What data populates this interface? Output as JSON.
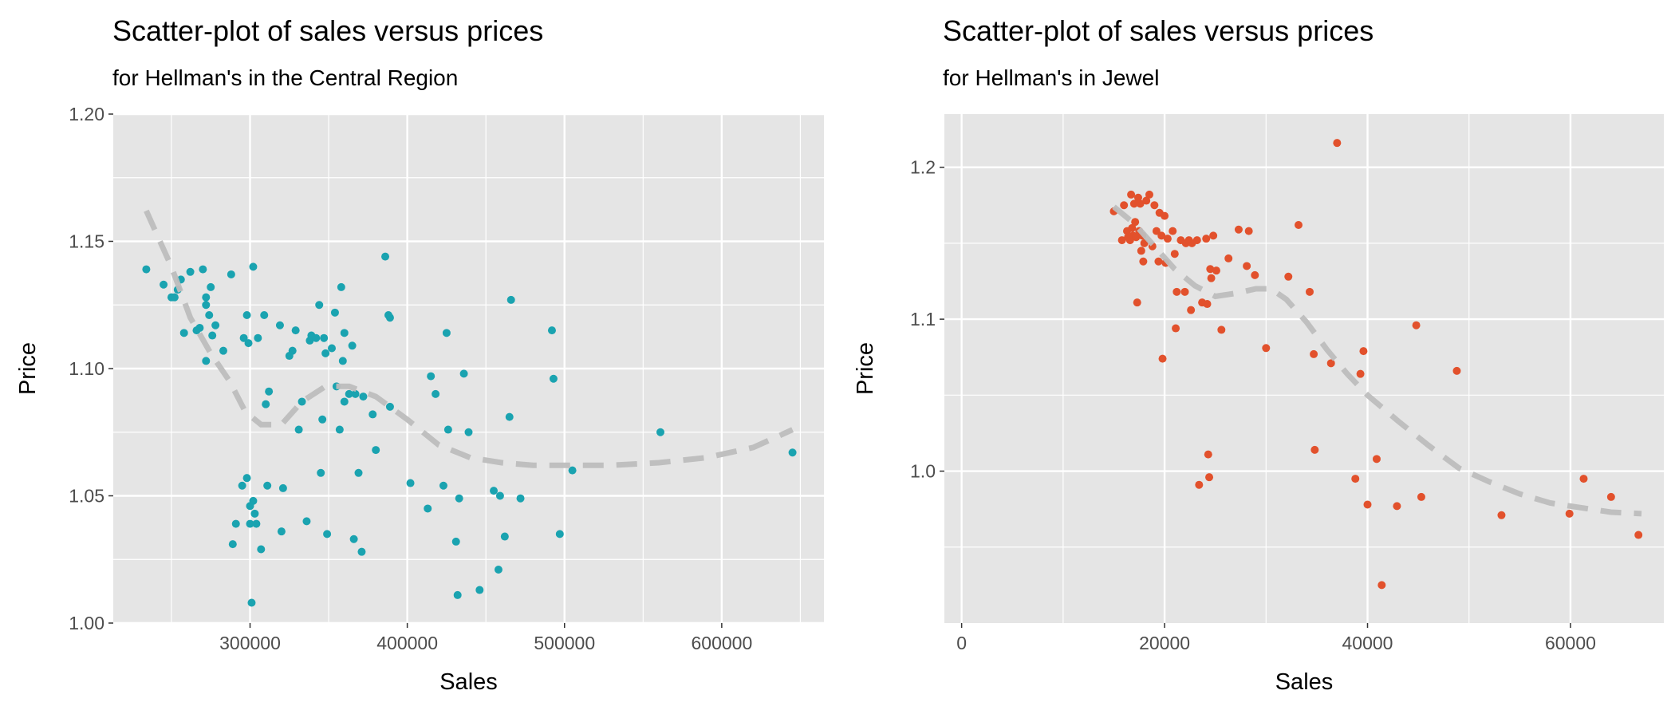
{
  "colors": {
    "panel_background": "#e5e5e5",
    "grid_line": "#ffffff",
    "left_points": "#1aa3b0",
    "right_points": "#e2512c",
    "smooth_line": "#bdbdbd"
  },
  "chart_data": [
    {
      "type": "scatter",
      "title": "Scatter-plot of sales versus prices",
      "subtitle": "for Hellman's in the Central Region",
      "xlabel": "Sales",
      "ylabel": "Price",
      "xlim": [
        213000,
        665000
      ],
      "ylim": [
        1.0,
        1.2
      ],
      "xticks": [
        300000,
        400000,
        500000,
        600000
      ],
      "xtick_labels": [
        "300000",
        "400000",
        "500000",
        "600000"
      ],
      "yticks": [
        1.0,
        1.05,
        1.1,
        1.15,
        1.2
      ],
      "ytick_labels": [
        "1.00",
        "1.05",
        "1.10",
        "1.15",
        "1.20"
      ],
      "grid": true,
      "point_color": "#1aa3b0",
      "points": [
        [
          234000,
          1.139
        ],
        [
          245000,
          1.133
        ],
        [
          250000,
          1.128
        ],
        [
          252000,
          1.128
        ],
        [
          254000,
          1.131
        ],
        [
          256000,
          1.135
        ],
        [
          258000,
          1.114
        ],
        [
          262000,
          1.138
        ],
        [
          266000,
          1.115
        ],
        [
          268000,
          1.116
        ],
        [
          270000,
          1.139
        ],
        [
          272000,
          1.128
        ],
        [
          272000,
          1.125
        ],
        [
          272000,
          1.103
        ],
        [
          274000,
          1.121
        ],
        [
          275000,
          1.132
        ],
        [
          276000,
          1.113
        ],
        [
          278000,
          1.117
        ],
        [
          283000,
          1.107
        ],
        [
          288000,
          1.137
        ],
        [
          289000,
          1.031
        ],
        [
          291000,
          1.039
        ],
        [
          295000,
          1.054
        ],
        [
          296000,
          1.112
        ],
        [
          298000,
          1.121
        ],
        [
          298000,
          1.057
        ],
        [
          299000,
          1.11
        ],
        [
          300000,
          1.046
        ],
        [
          300000,
          1.039
        ],
        [
          301000,
          1.008
        ],
        [
          302000,
          1.048
        ],
        [
          302000,
          1.14
        ],
        [
          303000,
          1.043
        ],
        [
          304000,
          1.039
        ],
        [
          305000,
          1.112
        ],
        [
          307000,
          1.029
        ],
        [
          309000,
          1.121
        ],
        [
          310000,
          1.086
        ],
        [
          311000,
          1.054
        ],
        [
          312000,
          1.091
        ],
        [
          319000,
          1.117
        ],
        [
          320000,
          1.036
        ],
        [
          321000,
          1.053
        ],
        [
          325000,
          1.105
        ],
        [
          327000,
          1.107
        ],
        [
          329000,
          1.115
        ],
        [
          331000,
          1.076
        ],
        [
          333000,
          1.087
        ],
        [
          336000,
          1.04
        ],
        [
          338000,
          1.111
        ],
        [
          339000,
          1.113
        ],
        [
          342000,
          1.112
        ],
        [
          344000,
          1.125
        ],
        [
          345000,
          1.059
        ],
        [
          346000,
          1.08
        ],
        [
          347000,
          1.112
        ],
        [
          348000,
          1.106
        ],
        [
          349000,
          1.035
        ],
        [
          352000,
          1.108
        ],
        [
          354000,
          1.122
        ],
        [
          355000,
          1.093
        ],
        [
          357000,
          1.076
        ],
        [
          358000,
          1.132
        ],
        [
          359000,
          1.103
        ],
        [
          360000,
          1.114
        ],
        [
          360000,
          1.087
        ],
        [
          363000,
          1.09
        ],
        [
          365000,
          1.109
        ],
        [
          366000,
          1.033
        ],
        [
          367000,
          1.09
        ],
        [
          369000,
          1.059
        ],
        [
          371000,
          1.028
        ],
        [
          372000,
          1.089
        ],
        [
          378000,
          1.082
        ],
        [
          380000,
          1.068
        ],
        [
          386000,
          1.144
        ],
        [
          388000,
          1.121
        ],
        [
          389000,
          1.12
        ],
        [
          389000,
          1.085
        ],
        [
          402000,
          1.055
        ],
        [
          413000,
          1.045
        ],
        [
          415000,
          1.097
        ],
        [
          418000,
          1.09
        ],
        [
          423000,
          1.054
        ],
        [
          425000,
          1.114
        ],
        [
          426000,
          1.076
        ],
        [
          431000,
          1.032
        ],
        [
          432000,
          1.011
        ],
        [
          433000,
          1.049
        ],
        [
          436000,
          1.098
        ],
        [
          439000,
          1.075
        ],
        [
          446000,
          1.013
        ],
        [
          455000,
          1.052
        ],
        [
          458000,
          1.021
        ],
        [
          459000,
          1.05
        ],
        [
          462000,
          1.034
        ],
        [
          465000,
          1.081
        ],
        [
          466000,
          1.127
        ],
        [
          472000,
          1.049
        ],
        [
          492000,
          1.115
        ],
        [
          493000,
          1.096
        ],
        [
          497000,
          1.035
        ],
        [
          505000,
          1.06
        ],
        [
          561000,
          1.075
        ],
        [
          645000,
          1.067
        ]
      ],
      "smooth_line": [
        [
          234000,
          1.162
        ],
        [
          250000,
          1.14
        ],
        [
          262000,
          1.12
        ],
        [
          275000,
          1.106
        ],
        [
          287000,
          1.095
        ],
        [
          297000,
          1.083
        ],
        [
          307000,
          1.078
        ],
        [
          320000,
          1.078
        ],
        [
          333000,
          1.087
        ],
        [
          348000,
          1.093
        ],
        [
          363000,
          1.093
        ],
        [
          380000,
          1.089
        ],
        [
          400000,
          1.08
        ],
        [
          420000,
          1.07
        ],
        [
          440000,
          1.065
        ],
        [
          460000,
          1.063
        ],
        [
          480000,
          1.062
        ],
        [
          500000,
          1.062
        ],
        [
          530000,
          1.062
        ],
        [
          560000,
          1.063
        ],
        [
          590000,
          1.065
        ],
        [
          620000,
          1.069
        ],
        [
          645000,
          1.076
        ]
      ]
    },
    {
      "type": "scatter",
      "title": "Scatter-plot of sales versus prices",
      "subtitle": "for Hellman's in Jewel",
      "xlabel": "Sales",
      "ylabel": "Price",
      "xlim": [
        -1700,
        69200
      ],
      "ylim": [
        0.9,
        1.235
      ],
      "xticks": [
        0,
        20000,
        40000,
        60000
      ],
      "xtick_labels": [
        "0",
        "20000",
        "40000",
        "60000"
      ],
      "yticks": [
        1.0,
        1.1,
        1.2
      ],
      "ytick_labels": [
        "1.0",
        "1.1",
        "1.2"
      ],
      "minor_yticks": [
        0.95,
        1.05,
        1.15
      ],
      "grid": true,
      "point_color": "#e2512c",
      "points": [
        [
          15000,
          1.171
        ],
        [
          15800,
          1.152
        ],
        [
          16000,
          1.175
        ],
        [
          16300,
          1.158
        ],
        [
          16400,
          1.154
        ],
        [
          16600,
          1.152
        ],
        [
          16700,
          1.182
        ],
        [
          16800,
          1.16
        ],
        [
          16900,
          1.155
        ],
        [
          17000,
          1.176
        ],
        [
          17100,
          1.164
        ],
        [
          17200,
          1.154
        ],
        [
          17300,
          1.111
        ],
        [
          17400,
          1.18
        ],
        [
          17500,
          1.158
        ],
        [
          17600,
          1.176
        ],
        [
          17700,
          1.145
        ],
        [
          17800,
          1.155
        ],
        [
          17900,
          1.138
        ],
        [
          18000,
          1.15
        ],
        [
          18200,
          1.178
        ],
        [
          18500,
          1.182
        ],
        [
          18800,
          1.148
        ],
        [
          19000,
          1.175
        ],
        [
          19200,
          1.158
        ],
        [
          19400,
          1.138
        ],
        [
          19500,
          1.17
        ],
        [
          19700,
          1.155
        ],
        [
          19800,
          1.074
        ],
        [
          20000,
          1.168
        ],
        [
          20100,
          1.137
        ],
        [
          20300,
          1.153
        ],
        [
          20800,
          1.158
        ],
        [
          21000,
          1.143
        ],
        [
          21100,
          1.094
        ],
        [
          21200,
          1.118
        ],
        [
          21600,
          1.152
        ],
        [
          22000,
          1.118
        ],
        [
          22100,
          1.15
        ],
        [
          22400,
          1.152
        ],
        [
          22600,
          1.106
        ],
        [
          22700,
          1.15
        ],
        [
          23200,
          1.152
        ],
        [
          23400,
          0.991
        ],
        [
          23700,
          1.111
        ],
        [
          24100,
          1.153
        ],
        [
          24200,
          1.11
        ],
        [
          24300,
          1.011
        ],
        [
          24400,
          0.996
        ],
        [
          24500,
          1.133
        ],
        [
          24600,
          1.127
        ],
        [
          24800,
          1.155
        ],
        [
          25100,
          1.132
        ],
        [
          25600,
          1.093
        ],
        [
          26300,
          1.14
        ],
        [
          27300,
          1.159
        ],
        [
          28100,
          1.135
        ],
        [
          28300,
          1.158
        ],
        [
          28900,
          1.129
        ],
        [
          30000,
          1.081
        ],
        [
          32200,
          1.128
        ],
        [
          33200,
          1.162
        ],
        [
          34300,
          1.118
        ],
        [
          34700,
          1.077
        ],
        [
          34800,
          1.014
        ],
        [
          36400,
          1.071
        ],
        [
          37000,
          1.216
        ],
        [
          38800,
          0.995
        ],
        [
          39300,
          1.064
        ],
        [
          39600,
          1.079
        ],
        [
          40000,
          0.978
        ],
        [
          40900,
          1.008
        ],
        [
          41400,
          0.925
        ],
        [
          42900,
          0.977
        ],
        [
          44800,
          1.096
        ],
        [
          45300,
          0.983
        ],
        [
          48800,
          1.066
        ],
        [
          53200,
          0.971
        ],
        [
          59900,
          0.972
        ],
        [
          61300,
          0.995
        ],
        [
          64000,
          0.983
        ],
        [
          66700,
          0.958
        ]
      ],
      "smooth_line": [
        [
          15000,
          1.174
        ],
        [
          17000,
          1.163
        ],
        [
          19000,
          1.148
        ],
        [
          21000,
          1.133
        ],
        [
          23000,
          1.122
        ],
        [
          25000,
          1.115
        ],
        [
          27000,
          1.117
        ],
        [
          29000,
          1.12
        ],
        [
          30500,
          1.12
        ],
        [
          32000,
          1.113
        ],
        [
          34000,
          1.098
        ],
        [
          36000,
          1.08
        ],
        [
          38000,
          1.064
        ],
        [
          40000,
          1.05
        ],
        [
          43000,
          1.033
        ],
        [
          46000,
          1.017
        ],
        [
          49000,
          1.002
        ],
        [
          52000,
          0.993
        ],
        [
          55000,
          0.985
        ],
        [
          58000,
          0.979
        ],
        [
          61000,
          0.976
        ],
        [
          64000,
          0.973
        ],
        [
          67000,
          0.972
        ]
      ]
    }
  ]
}
